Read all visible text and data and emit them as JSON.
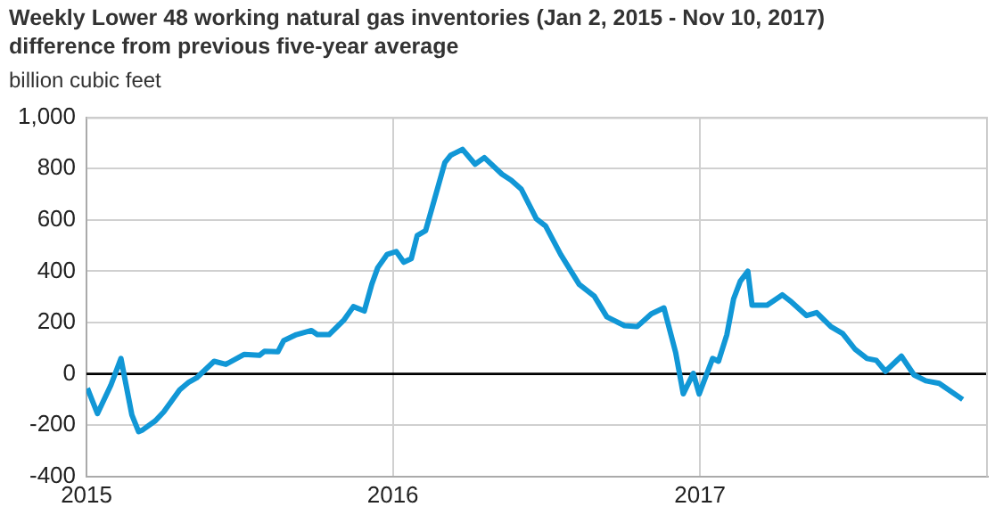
{
  "chart_data": {
    "type": "line",
    "title": "Weekly Lower 48 working natural gas inventories (Jan 2, 2015 - Nov 10, 2017)",
    "subtitle": "difference from previous five-year average",
    "ylabel": "billion cubic feet",
    "x": [
      "2015-01-02",
      "2015-01-14",
      "2015-01-30",
      "2015-02-11",
      "2015-02-24",
      "2015-03-04",
      "2015-03-09",
      "2015-03-24",
      "2015-04-03",
      "2015-04-22",
      "2015-05-03",
      "2015-05-12",
      "2015-06-02",
      "2015-06-16",
      "2015-07-08",
      "2015-07-26",
      "2015-08-01",
      "2015-08-17",
      "2015-08-24",
      "2015-09-08",
      "2015-09-26",
      "2015-10-03",
      "2015-10-17",
      "2015-11-04",
      "2015-11-15",
      "2015-11-28",
      "2015-12-07",
      "2015-12-14",
      "2015-12-25",
      "2016-01-05",
      "2016-01-14",
      "2016-01-23",
      "2016-01-30",
      "2016-02-09",
      "2016-02-17",
      "2016-03-03",
      "2016-03-10",
      "2016-03-24",
      "2016-04-08",
      "2016-04-19",
      "2016-05-10",
      "2016-05-21",
      "2016-06-02",
      "2016-06-20",
      "2016-07-01",
      "2016-07-19",
      "2016-08-10",
      "2016-08-28",
      "2016-09-12",
      "2016-10-03",
      "2016-10-18",
      "2016-11-04",
      "2016-11-19",
      "2016-12-03",
      "2016-12-12",
      "2016-12-24",
      "2016-12-31",
      "2017-01-16",
      "2017-01-23",
      "2017-02-02",
      "2017-02-10",
      "2017-02-18",
      "2017-02-27",
      "2017-03-04",
      "2017-03-22",
      "2017-04-09",
      "2017-04-20",
      "2017-05-08",
      "2017-05-20",
      "2017-06-06",
      "2017-06-20",
      "2017-07-05",
      "2017-07-19",
      "2017-07-30",
      "2017-08-10",
      "2017-08-29",
      "2017-09-13",
      "2017-09-27",
      "2017-10-13",
      "2017-11-10"
    ],
    "series": [
      {
        "color": "#1197d6",
        "values": [
          -56,
          -155,
          -44,
          60,
          -160,
          -225,
          -218,
          -183,
          -148,
          -62,
          -32,
          -16,
          49,
          37,
          76,
          72,
          88,
          86,
          130,
          153,
          169,
          153,
          153,
          211,
          262,
          245,
          350,
          414,
          465,
          477,
          435,
          449,
          539,
          558,
          650,
          824,
          852,
          875,
          817,
          843,
          778,
          755,
          720,
          604,
          576,
          465,
          349,
          303,
          222,
          188,
          184,
          234,
          257,
          83,
          -78,
          2,
          -78,
          60,
          49,
          153,
          292,
          361,
          400,
          268,
          268,
          308,
          280,
          227,
          239,
          184,
          157,
          95,
          60,
          53,
          10,
          69,
          -4,
          -27,
          -37,
          -100
        ]
      }
    ],
    "xlim": [
      "2015-01-01",
      "2017-12-10"
    ],
    "xticks": [
      {
        "value": "2015-01-01",
        "label": "2015"
      },
      {
        "value": "2016-01-01",
        "label": "2016"
      },
      {
        "value": "2017-01-01",
        "label": "2017"
      }
    ],
    "ylim": [
      -400,
      1000
    ],
    "yticks": [
      -400,
      -200,
      0,
      200,
      400,
      600,
      800,
      {
        "value": 1000,
        "label": "1,000"
      }
    ],
    "grid": true,
    "marker": "none",
    "line_style": "solid",
    "ref_lines": [
      {
        "axis": "y",
        "value": 0,
        "color": "#000000"
      }
    ]
  }
}
